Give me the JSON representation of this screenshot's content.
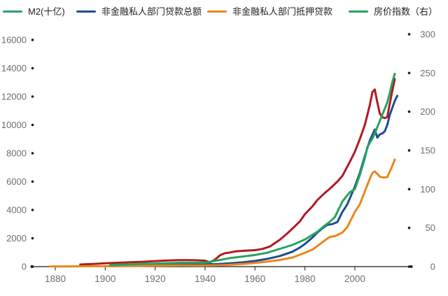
{
  "legend": {
    "items": [
      {
        "label": "M2(十亿)",
        "swatch_color": "#2f9e6e"
      },
      {
        "label": "非金融私人部门贷款总额",
        "swatch_color": "#1e4e8c"
      },
      {
        "label": "非金融私人部门抵押贷款",
        "swatch_color": "#e8871e"
      },
      {
        "label": "房价指数（右）",
        "swatch_color": "#27a35f"
      }
    ]
  },
  "chart_data": {
    "type": "line",
    "title": "",
    "xlabel": "",
    "ylabel_left": "",
    "ylabel_right": "",
    "grid": false,
    "legend_position": "top",
    "x_axis": {
      "range": [
        1870.6,
        2022.6
      ],
      "ticks": [
        1880,
        1900,
        1920,
        1940,
        1960,
        1980,
        2000
      ]
    },
    "y_axis_left": {
      "range": [
        0,
        16000
      ],
      "ticks": [
        0,
        2000,
        4000,
        6000,
        8000,
        10000,
        12000,
        14000,
        16000
      ]
    },
    "y_axis_right": {
      "range": [
        0,
        300
      ],
      "ticks": [
        0,
        50,
        100,
        150,
        200,
        250,
        300
      ]
    },
    "axis_color": "#1a1a1a",
    "tick_label_color": "#6e6e6e",
    "series": [
      {
        "name": "M2(十亿)",
        "axis": "left",
        "color": "#b11a21",
        "points": [
          [
            1890,
            150
          ],
          [
            1895,
            190
          ],
          [
            1900,
            230
          ],
          [
            1905,
            270
          ],
          [
            1910,
            310
          ],
          [
            1915,
            340
          ],
          [
            1920,
            390
          ],
          [
            1925,
            430
          ],
          [
            1930,
            460
          ],
          [
            1933,
            455
          ],
          [
            1936,
            450
          ],
          [
            1940,
            420
          ],
          [
            1942,
            300
          ],
          [
            1944,
            500
          ],
          [
            1946,
            800
          ],
          [
            1948,
            950
          ],
          [
            1950,
            1000
          ],
          [
            1952,
            1070
          ],
          [
            1956,
            1120
          ],
          [
            1960,
            1160
          ],
          [
            1963,
            1250
          ],
          [
            1966,
            1420
          ],
          [
            1970,
            1900
          ],
          [
            1973,
            2350
          ],
          [
            1976,
            2850
          ],
          [
            1978,
            3200
          ],
          [
            1980,
            3700
          ],
          [
            1983,
            4250
          ],
          [
            1985,
            4700
          ],
          [
            1988,
            5200
          ],
          [
            1990,
            5500
          ],
          [
            1993,
            6000
          ],
          [
            1995,
            6400
          ],
          [
            1998,
            7400
          ],
          [
            2000,
            8100
          ],
          [
            2002,
            9000
          ],
          [
            2004,
            10000
          ],
          [
            2006,
            11400
          ],
          [
            2007,
            12300
          ],
          [
            2008,
            12500
          ],
          [
            2009,
            11600
          ],
          [
            2010,
            10800
          ],
          [
            2011,
            10550
          ],
          [
            2012,
            10480
          ],
          [
            2013,
            10550
          ],
          [
            2014,
            11500
          ],
          [
            2015,
            12400
          ],
          [
            2016,
            13250
          ]
        ]
      },
      {
        "name": "非金融私人部门贷款总额",
        "axis": "left",
        "color": "#1e4e8c",
        "points": [
          [
            1902,
            30
          ],
          [
            1910,
            60
          ],
          [
            1915,
            90
          ],
          [
            1920,
            120
          ],
          [
            1925,
            150
          ],
          [
            1930,
            170
          ],
          [
            1935,
            155
          ],
          [
            1940,
            160
          ],
          [
            1945,
            180
          ],
          [
            1950,
            230
          ],
          [
            1955,
            300
          ],
          [
            1960,
            400
          ],
          [
            1965,
            550
          ],
          [
            1970,
            750
          ],
          [
            1975,
            1050
          ],
          [
            1978,
            1350
          ],
          [
            1980,
            1600
          ],
          [
            1983,
            2050
          ],
          [
            1985,
            2400
          ],
          [
            1987,
            2700
          ],
          [
            1989,
            2950
          ],
          [
            1991,
            3000
          ],
          [
            1993,
            3150
          ],
          [
            1995,
            3850
          ],
          [
            1997,
            4400
          ],
          [
            2000,
            5650
          ],
          [
            2002,
            6600
          ],
          [
            2004,
            7800
          ],
          [
            2006,
            8900
          ],
          [
            2008,
            9680
          ],
          [
            2009,
            9100
          ],
          [
            2010,
            9330
          ],
          [
            2011,
            9400
          ],
          [
            2012,
            9550
          ],
          [
            2013,
            10000
          ],
          [
            2014,
            10700
          ],
          [
            2015,
            11200
          ],
          [
            2016,
            11700
          ],
          [
            2017,
            12050
          ]
        ]
      },
      {
        "name": "非金融私人部门抵押贷款",
        "axis": "left",
        "color": "#e8871e",
        "points": [
          [
            1878,
            8
          ],
          [
            1885,
            15
          ],
          [
            1890,
            20
          ],
          [
            1900,
            30
          ],
          [
            1910,
            45
          ],
          [
            1920,
            60
          ],
          [
            1925,
            75
          ],
          [
            1930,
            85
          ],
          [
            1935,
            78
          ],
          [
            1940,
            80
          ],
          [
            1945,
            95
          ],
          [
            1950,
            130
          ],
          [
            1955,
            190
          ],
          [
            1960,
            260
          ],
          [
            1965,
            350
          ],
          [
            1970,
            470
          ],
          [
            1975,
            640
          ],
          [
            1980,
            980
          ],
          [
            1983,
            1200
          ],
          [
            1985,
            1450
          ],
          [
            1988,
            1850
          ],
          [
            1990,
            2100
          ],
          [
            1992,
            2150
          ],
          [
            1995,
            2400
          ],
          [
            1997,
            2800
          ],
          [
            2000,
            3850
          ],
          [
            2002,
            4400
          ],
          [
            2004,
            5300
          ],
          [
            2006,
            6200
          ],
          [
            2007,
            6600
          ],
          [
            2008,
            6720
          ],
          [
            2009,
            6550
          ],
          [
            2010,
            6350
          ],
          [
            2011,
            6300
          ],
          [
            2012,
            6290
          ],
          [
            2013,
            6320
          ],
          [
            2014,
            6700
          ],
          [
            2015,
            7100
          ],
          [
            2016,
            7560
          ]
        ]
      },
      {
        "name": "房价指数（右）",
        "axis": "right",
        "color": "#27a35f",
        "points": [
          [
            1902,
            2
          ],
          [
            1910,
            3
          ],
          [
            1920,
            4
          ],
          [
            1930,
            5
          ],
          [
            1940,
            5
          ],
          [
            1945,
            8
          ],
          [
            1950,
            11
          ],
          [
            1955,
            13
          ],
          [
            1960,
            15
          ],
          [
            1965,
            18
          ],
          [
            1970,
            23
          ],
          [
            1975,
            28
          ],
          [
            1980,
            35
          ],
          [
            1985,
            45
          ],
          [
            1988,
            53
          ],
          [
            1990,
            58
          ],
          [
            1992,
            64
          ],
          [
            1995,
            84
          ],
          [
            1998,
            96
          ],
          [
            2000,
            100
          ],
          [
            2002,
            118
          ],
          [
            2004,
            140
          ],
          [
            2005,
            154
          ],
          [
            2006,
            160
          ],
          [
            2007,
            165
          ],
          [
            2008,
            172
          ],
          [
            2009,
            180
          ],
          [
            2010,
            188
          ],
          [
            2011,
            196
          ],
          [
            2012,
            204
          ],
          [
            2013,
            212
          ],
          [
            2014,
            224
          ],
          [
            2015,
            238
          ],
          [
            2016,
            249
          ]
        ]
      }
    ]
  }
}
